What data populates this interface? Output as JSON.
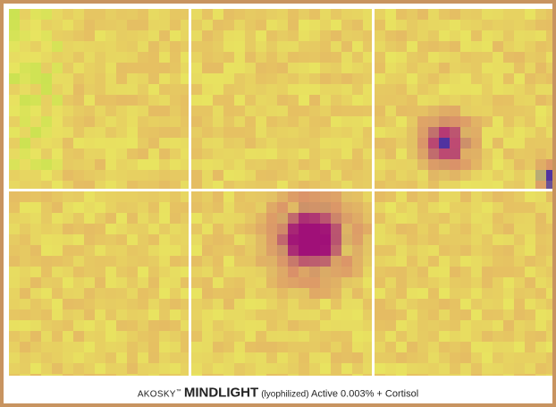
{
  "caption": {
    "brand": "AKOSKY",
    "trademark": "™",
    "product": "MINDLIGHT",
    "form": "(lyophilized)",
    "detail": "Active 0.003% + Cortisol"
  }
}
